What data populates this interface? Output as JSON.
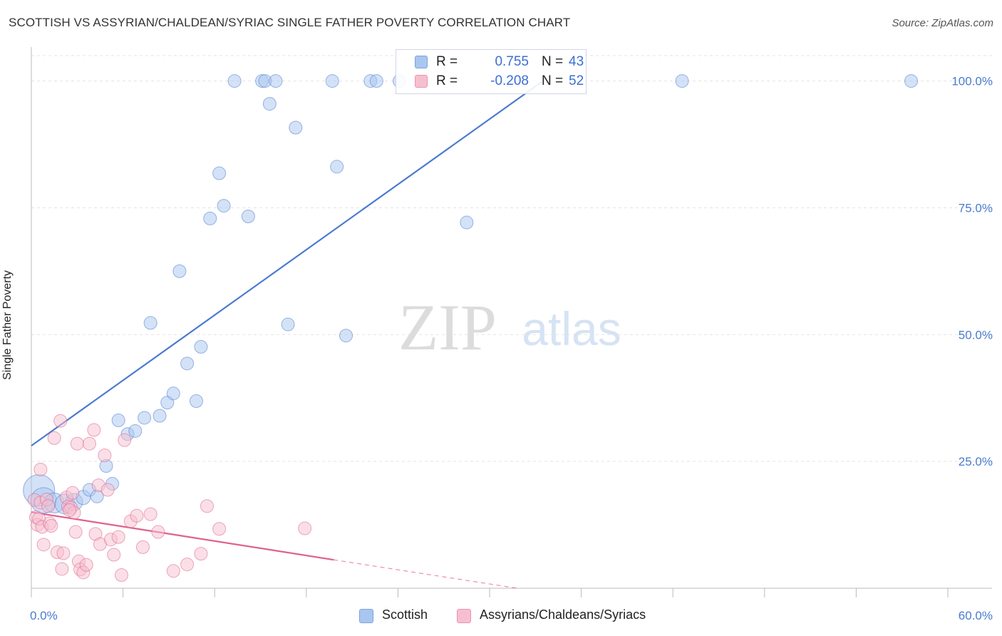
{
  "title": "SCOTTISH VS ASSYRIAN/CHALDEAN/SYRIAC SINGLE FATHER POVERTY CORRELATION CHART",
  "source": "Source: ZipAtlas.com",
  "watermark": {
    "zip": "ZIP",
    "atlas": "atlas"
  },
  "legend_stats": [
    {
      "r_label": "R =",
      "r_value": "0.755",
      "n_label": "N =",
      "n_value": "43",
      "color": "#a9c6f0",
      "border": "#7ba3e0"
    },
    {
      "r_label": "R =",
      "r_value": "-0.208",
      "n_label": "N =",
      "n_value": "52",
      "color": "#f6bfd0",
      "border": "#ec93b1"
    }
  ],
  "chart_data": {
    "type": "scatter",
    "title": "SCOTTISH VS ASSYRIAN/CHALDEAN/SYRIAC SINGLE FATHER POVERTY CORRELATION CHART",
    "xlabel": "",
    "ylabel": "Single Father Poverty",
    "xlim": [
      0,
      60
    ],
    "ylim": [
      0,
      105
    ],
    "x_tick_labels": [
      "0.0%",
      "60.0%"
    ],
    "y_ticks": [
      25,
      50,
      75,
      100
    ],
    "y_tick_labels": [
      "25.0%",
      "50.0%",
      "75.0%",
      "100.0%"
    ],
    "grid": true,
    "legend_position": "bottom",
    "series": [
      {
        "name": "Scottish",
        "color": "#4a7bd0",
        "fill": "#a9c6f0",
        "points": [
          [
            0.5,
            19.3
          ],
          [
            0.8,
            17.3
          ],
          [
            1.5,
            16.8
          ],
          [
            2.2,
            16.6
          ],
          [
            2.8,
            17.0
          ],
          [
            3.4,
            17.9
          ],
          [
            3.8,
            19.4
          ],
          [
            4.3,
            18.1
          ],
          [
            4.9,
            24.1
          ],
          [
            5.3,
            20.6
          ],
          [
            5.7,
            33.1
          ],
          [
            6.3,
            30.4
          ],
          [
            6.8,
            31.0
          ],
          [
            7.4,
            33.6
          ],
          [
            7.8,
            52.3
          ],
          [
            8.4,
            34.0
          ],
          [
            8.9,
            36.6
          ],
          [
            9.3,
            38.4
          ],
          [
            9.7,
            62.5
          ],
          [
            10.2,
            44.3
          ],
          [
            10.8,
            36.9
          ],
          [
            11.1,
            47.6
          ],
          [
            11.7,
            72.9
          ],
          [
            12.3,
            81.8
          ],
          [
            12.6,
            75.4
          ],
          [
            13.3,
            100.0
          ],
          [
            14.2,
            73.3
          ],
          [
            15.1,
            100.0
          ],
          [
            15.3,
            100.0
          ],
          [
            15.6,
            95.5
          ],
          [
            16.0,
            100.0
          ],
          [
            16.8,
            52.0
          ],
          [
            17.3,
            90.8
          ],
          [
            19.7,
            100.0
          ],
          [
            20.0,
            83.1
          ],
          [
            20.6,
            49.8
          ],
          [
            22.2,
            100.0
          ],
          [
            22.6,
            100.0
          ],
          [
            24.1,
            100.0
          ],
          [
            28.5,
            72.1
          ],
          [
            31.3,
            100.0
          ],
          [
            42.6,
            100.0
          ],
          [
            57.6,
            100.0
          ]
        ],
        "point_sizes": [
          22,
          18,
          14,
          14,
          12,
          10,
          9,
          9,
          9,
          9,
          9,
          9,
          9,
          9,
          9,
          9,
          9,
          9,
          9,
          9,
          9,
          9,
          9,
          9,
          9,
          9,
          9,
          9,
          9,
          9,
          9,
          9,
          9,
          9,
          9,
          9,
          9,
          9,
          9,
          9,
          9,
          9,
          9
        ],
        "trend": {
          "x": [
            0,
            33.5
          ],
          "y": [
            28.1,
            100.0
          ],
          "dashed_to": null
        }
      },
      {
        "name": "Assyrians/Chaldeans/Syriacs",
        "color": "#e0608c",
        "fill": "#f6bfd0",
        "points": [
          [
            0.2,
            17.4
          ],
          [
            0.3,
            14.0
          ],
          [
            0.4,
            12.5
          ],
          [
            0.5,
            13.7
          ],
          [
            0.6,
            16.9
          ],
          [
            0.6,
            23.4
          ],
          [
            0.7,
            12.1
          ],
          [
            0.8,
            8.6
          ],
          [
            1.0,
            17.5
          ],
          [
            1.1,
            16.2
          ],
          [
            1.2,
            12.8
          ],
          [
            1.3,
            12.3
          ],
          [
            1.5,
            29.6
          ],
          [
            1.7,
            7.1
          ],
          [
            1.9,
            33.0
          ],
          [
            2.0,
            3.8
          ],
          [
            2.1,
            6.9
          ],
          [
            2.3,
            17.9
          ],
          [
            2.4,
            16.1
          ],
          [
            2.6,
            15.9
          ],
          [
            2.7,
            18.8
          ],
          [
            2.8,
            14.9
          ],
          [
            2.9,
            11.1
          ],
          [
            3.0,
            28.5
          ],
          [
            3.1,
            5.3
          ],
          [
            3.2,
            3.7
          ],
          [
            3.4,
            3.1
          ],
          [
            3.6,
            4.6
          ],
          [
            3.8,
            28.5
          ],
          [
            4.1,
            31.2
          ],
          [
            4.2,
            10.7
          ],
          [
            4.4,
            20.3
          ],
          [
            4.5,
            8.7
          ],
          [
            4.8,
            26.2
          ],
          [
            5.0,
            19.4
          ],
          [
            5.2,
            9.6
          ],
          [
            5.4,
            6.6
          ],
          [
            5.7,
            10.1
          ],
          [
            5.9,
            2.6
          ],
          [
            6.1,
            29.2
          ],
          [
            6.5,
            13.2
          ],
          [
            6.9,
            14.3
          ],
          [
            7.3,
            8.1
          ],
          [
            7.8,
            14.6
          ],
          [
            8.3,
            11.1
          ],
          [
            9.3,
            3.4
          ],
          [
            10.2,
            4.7
          ],
          [
            11.1,
            6.8
          ],
          [
            11.5,
            16.2
          ],
          [
            12.3,
            11.7
          ],
          [
            17.9,
            11.8
          ],
          [
            2.5,
            15.4
          ]
        ],
        "point_sizes": [
          9,
          9,
          9,
          9,
          9,
          9,
          9,
          9,
          9,
          9,
          9,
          9,
          9,
          9,
          9,
          9,
          9,
          9,
          9,
          9,
          9,
          9,
          9,
          9,
          9,
          9,
          9,
          9,
          9,
          9,
          9,
          9,
          9,
          9,
          9,
          9,
          9,
          9,
          9,
          9,
          9,
          9,
          9,
          9,
          9,
          9,
          9,
          9,
          9,
          9,
          9,
          9
        ],
        "trend": {
          "x": [
            0,
            19.8
          ],
          "y": [
            15.0,
            5.6
          ],
          "dashed_to": [
            31.8,
            0.0
          ]
        }
      }
    ]
  }
}
